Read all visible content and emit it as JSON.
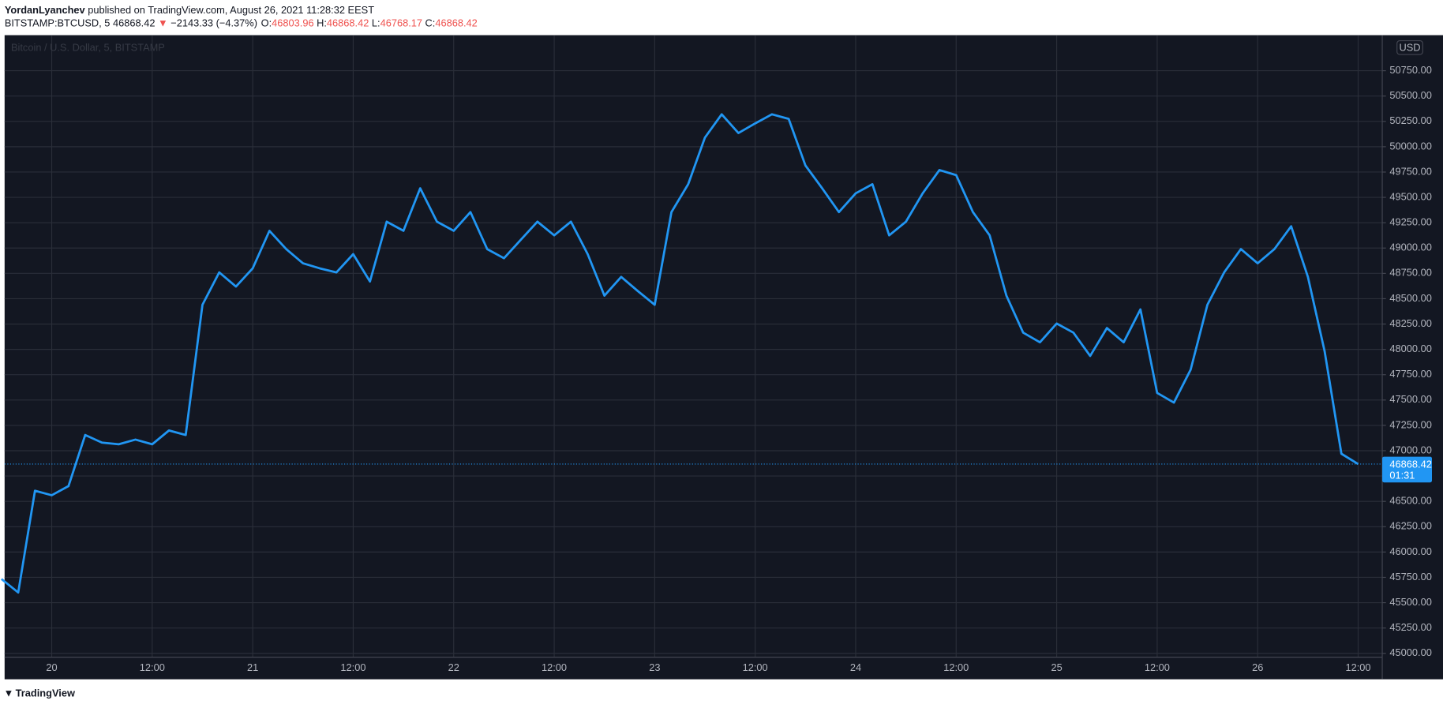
{
  "header": {
    "author": "YordanLyanchev",
    "published": "published on TradingView.com, August 26, 2021 11:28:32 EEST",
    "symbol": "BITSTAMP:BTCUSD, 5",
    "last": "46868.42",
    "arrow": "▼",
    "change": "−2143.33 (−4.37%)",
    "ohlc": [
      {
        "label": "O:",
        "value": "46803.96"
      },
      {
        "label": "H:",
        "value": "46868.42"
      },
      {
        "label": "L:",
        "value": "46768.17"
      },
      {
        "label": "C:",
        "value": "46868.42"
      }
    ]
  },
  "footer": {
    "brand": "TradingView"
  },
  "chart_data": {
    "type": "line",
    "watermark": "Bitcoin / U.S. Dollar, 5, BITSTAMP",
    "currency": "USD",
    "color": "#2196f3",
    "grid": true,
    "categories": [
      null,
      null,
      null,
      "20",
      null,
      null,
      null,
      null,
      null,
      "12:00",
      null,
      null,
      null,
      null,
      null,
      "21",
      null,
      null,
      null,
      null,
      null,
      "12:00",
      null,
      null,
      null,
      null,
      null,
      "22",
      null,
      null,
      null,
      null,
      null,
      "12:00",
      null,
      null,
      null,
      null,
      null,
      "23",
      null,
      null,
      null,
      null,
      null,
      "12:00",
      null,
      null,
      null,
      null,
      null,
      "24",
      null,
      null,
      null,
      null,
      null,
      "12:00",
      null,
      null,
      null,
      null,
      null,
      "25",
      null,
      null,
      null,
      null,
      null,
      "12:00",
      null,
      null,
      null,
      null,
      null,
      "26",
      null,
      null,
      null,
      null,
      null,
      "12:00"
    ],
    "values": [
      45734,
      45600,
      46605,
      46560,
      46650,
      47155,
      47080,
      47063,
      47110,
      47063,
      47200,
      47155,
      48440,
      48760,
      48620,
      48800,
      49170,
      48990,
      48850,
      48800,
      48760,
      48940,
      48670,
      49260,
      49170,
      49590,
      49260,
      49170,
      49355,
      48990,
      48900,
      49080,
      49260,
      49125,
      49260,
      48940,
      48530,
      48715,
      48575,
      48440,
      49355,
      49630,
      50090,
      50320,
      50135,
      50230,
      50320,
      50275,
      49815,
      49590,
      49355,
      49540,
      49630,
      49125,
      49260,
      49540,
      49770,
      49720,
      49355,
      49125,
      48530,
      48165,
      48070,
      48255,
      48165,
      47935,
      48210,
      48070,
      48395,
      47570,
      47475,
      47800,
      48440,
      48760,
      48990,
      48850,
      48990,
      49215,
      48715,
      47980,
      46970,
      46868.42
    ],
    "last_price": 46868.42,
    "countdown": "01:31",
    "ylim": [
      44962,
      51101
    ],
    "yticks": [
      {
        "value": 45000,
        "label": "45000.00"
      },
      {
        "value": 45250,
        "label": "45250.00"
      },
      {
        "value": 45500,
        "label": "45500.00"
      },
      {
        "value": 45750,
        "label": "45750.00"
      },
      {
        "value": 46000,
        "label": "46000.00"
      },
      {
        "value": 46250,
        "label": "46250.00"
      },
      {
        "value": 46500,
        "label": "46500.00"
      },
      {
        "value": 46750,
        "label": "46750.00"
      },
      {
        "value": 47000,
        "label": "47000.00"
      },
      {
        "value": 47250,
        "label": "47250.00"
      },
      {
        "value": 47500,
        "label": "47500.00"
      },
      {
        "value": 47750,
        "label": "47750.00"
      },
      {
        "value": 48000,
        "label": "48000.00"
      },
      {
        "value": 48250,
        "label": "48250.00"
      },
      {
        "value": 48500,
        "label": "48500.00"
      },
      {
        "value": 48750,
        "label": "48750.00"
      },
      {
        "value": 49000,
        "label": "49000.00"
      },
      {
        "value": 49250,
        "label": "49250.00"
      },
      {
        "value": 49500,
        "label": "49500.00"
      },
      {
        "value": 49750,
        "label": "49750.00"
      },
      {
        "value": 50000,
        "label": "50000.00"
      },
      {
        "value": 50250,
        "label": "50250.00"
      },
      {
        "value": 50500,
        "label": "50500.00"
      },
      {
        "value": 50750,
        "label": "50750.00"
      }
    ]
  }
}
